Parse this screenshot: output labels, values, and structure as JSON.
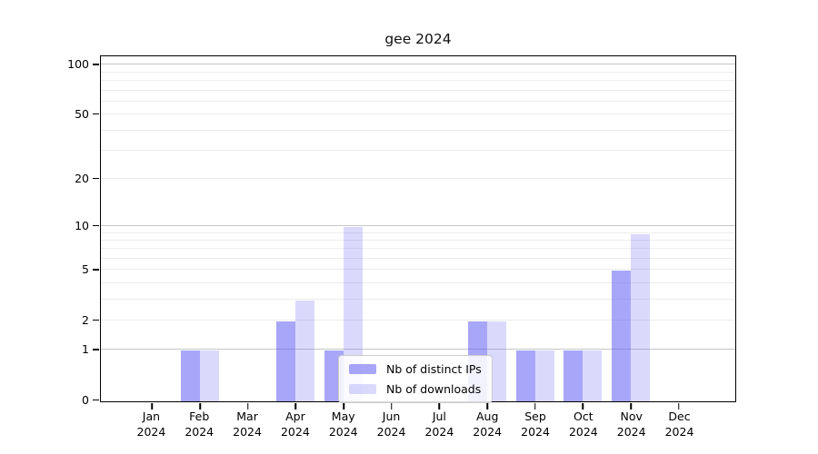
{
  "chart_data": {
    "type": "bar",
    "title": "gee 2024",
    "categories": [
      "Jan 2024",
      "Feb 2024",
      "Mar 2024",
      "Apr 2024",
      "May 2024",
      "Jun 2024",
      "Jul 2024",
      "Aug 2024",
      "Sep 2024",
      "Oct 2024",
      "Nov 2024",
      "Dec 2024"
    ],
    "months": [
      {
        "month": "Jan",
        "year": "2024"
      },
      {
        "month": "Feb",
        "year": "2024"
      },
      {
        "month": "Mar",
        "year": "2024"
      },
      {
        "month": "Apr",
        "year": "2024"
      },
      {
        "month": "May",
        "year": "2024"
      },
      {
        "month": "Jun",
        "year": "2024"
      },
      {
        "month": "Jul",
        "year": "2024"
      },
      {
        "month": "Aug",
        "year": "2024"
      },
      {
        "month": "Sep",
        "year": "2024"
      },
      {
        "month": "Oct",
        "year": "2024"
      },
      {
        "month": "Nov",
        "year": "2024"
      },
      {
        "month": "Dec",
        "year": "2024"
      }
    ],
    "series": [
      {
        "name": "Nb of distinct IPs",
        "color": "rgba(99,97,242,0.56)",
        "values": [
          0,
          1,
          0,
          2,
          1,
          0,
          0,
          2,
          1,
          1,
          5,
          0
        ]
      },
      {
        "name": "Nb of downloads",
        "color": "rgba(99,97,242,0.24)",
        "values": [
          0,
          1,
          0,
          3,
          10,
          0,
          0,
          2,
          1,
          1,
          9,
          0
        ]
      }
    ],
    "xlabel": "",
    "ylabel": "",
    "yscale": "log1p",
    "ylim": [
      0,
      111
    ],
    "yticks": [
      0,
      1,
      2,
      5,
      10,
      20,
      50,
      100
    ],
    "grid": {
      "on": true,
      "dark_values": [
        1,
        10,
        100
      ],
      "light_values": [
        2,
        3,
        4,
        5,
        6,
        7,
        8,
        9,
        20,
        30,
        40,
        50,
        60,
        70,
        80,
        90
      ],
      "dark_color": "#c6c6c6",
      "light_color": "#ececec"
    },
    "legend_position": "inside-bottom-center"
  }
}
